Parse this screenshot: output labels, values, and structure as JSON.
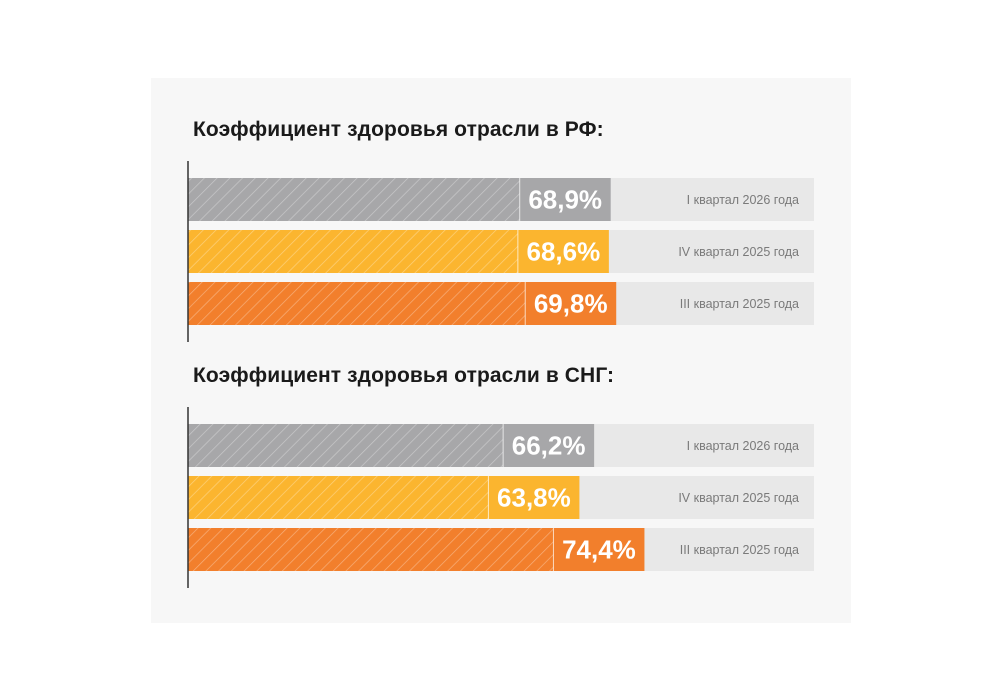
{
  "colors": {
    "panel_background": "#f7f7f7",
    "track": "#e8e8e8",
    "axis": "#333333",
    "gray": "#a7a7a9",
    "yellow": "#fbb52f",
    "orange": "#f27f2c"
  },
  "chart_data": [
    {
      "type": "bar",
      "orientation": "horizontal",
      "title": "Коэффициент здоровья отрасли в РФ:",
      "xlim": [
        0,
        100
      ],
      "categories": [
        "I квартал 2026 года",
        "IV квартал 2025 года",
        "III квартал 2025 года"
      ],
      "values": [
        68.9,
        68.6,
        69.8
      ],
      "value_labels": [
        "68,9%",
        "68,6%",
        "69,8%"
      ],
      "bar_colors": [
        "#a7a7a9",
        "#fbb52f",
        "#f27f2c"
      ],
      "grid": false
    },
    {
      "type": "bar",
      "orientation": "horizontal",
      "title": "Коэффициент здоровья отрасли в СНГ:",
      "xlim": [
        0,
        100
      ],
      "categories": [
        "I квартал 2026 года",
        "IV квартал 2025 года",
        "III квартал 2025 года"
      ],
      "values": [
        66.2,
        63.8,
        74.4
      ],
      "value_labels": [
        "66,2%",
        "63,8%",
        "74,4%"
      ],
      "bar_colors": [
        "#a7a7a9",
        "#fbb52f",
        "#f27f2c"
      ],
      "grid": false
    }
  ]
}
